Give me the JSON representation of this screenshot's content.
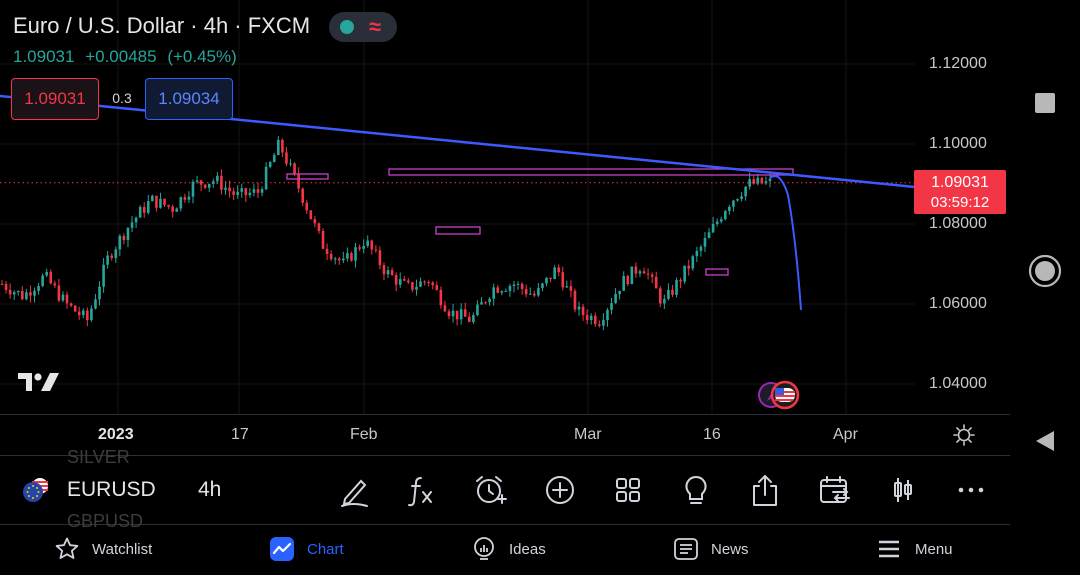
{
  "header": {
    "title": "Euro / U.S. Dollar · 4h · FXCM",
    "last_price": "1.09031",
    "change": "+0.00485",
    "change_pct": "(+0.45%)"
  },
  "trade": {
    "sell_price": "1.09031",
    "spread": "0.3",
    "buy_price": "1.09034"
  },
  "price_axis": {
    "ticks": [
      "1.12000",
      "1.10000",
      "1.08000",
      "1.06000",
      "1.04000"
    ],
    "current_price": "1.09031",
    "countdown": "03:59:12"
  },
  "time_axis": {
    "ticks": [
      "2023",
      "17",
      "Feb",
      "Mar",
      "16",
      "Apr"
    ]
  },
  "chart_data": {
    "type": "candlestick",
    "symbol": "EURUSD",
    "interval": "4h",
    "ylim": [
      1.032,
      1.129
    ],
    "current_price": 1.09031,
    "trendline": {
      "from": [
        1.1052,
        "start"
      ],
      "to": [
        1.09,
        "end"
      ]
    },
    "closes_sample": [
      1.065,
      1.062,
      1.067,
      1.06,
      1.056,
      1.072,
      1.08,
      1.086,
      1.084,
      1.09,
      1.091,
      1.087,
      1.088,
      1.1,
      1.088,
      1.075,
      1.07,
      1.076,
      1.068,
      1.064,
      1.066,
      1.058,
      1.056,
      1.064,
      1.065,
      1.062,
      1.069,
      1.058,
      1.056,
      1.065,
      1.07,
      1.06,
      1.068,
      1.076,
      1.085,
      1.09,
      1.0903
    ]
  },
  "colors": {
    "up": "#26a69a",
    "down": "#f23645",
    "accent": "#2962ff",
    "trendline": "#3d5afe",
    "zones": "#c940c9"
  },
  "toolbar": {
    "symbol": "EURUSD",
    "interval": "4h",
    "ghost_prev": "SILVER",
    "ghost_next": "GBPUSD"
  },
  "nav": {
    "watchlist": "Watchlist",
    "chart": "Chart",
    "ideas": "Ideas",
    "news": "News",
    "menu": "Menu"
  }
}
